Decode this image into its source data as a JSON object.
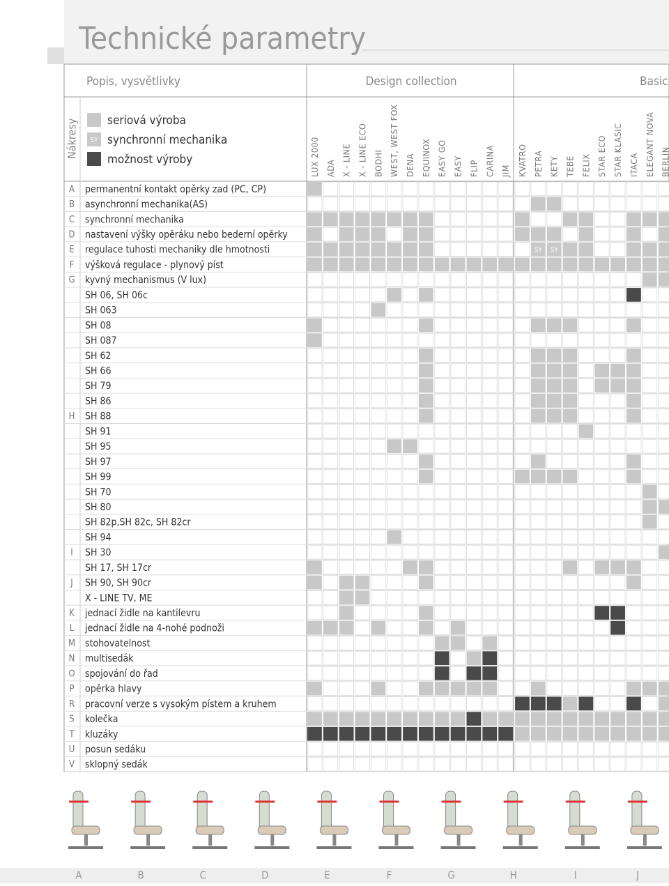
{
  "header": {
    "title": "Technické parametry",
    "sections": [
      "Popis, vysvětlivky",
      "Design collection",
      "Basic"
    ],
    "side_label": "Nákresy"
  },
  "legend": {
    "serial": "seriová výroba",
    "sync_mark": "SY",
    "sync": "synchronní mechanika",
    "option": "možnost výroby"
  },
  "columns": [
    "LUX 2000",
    "ADA",
    "X - LINE",
    "X - LINE ECO",
    "BODHI",
    "WEST, WEST FOX",
    "DENA",
    "EQUINOX",
    "EASY GO",
    "EASY",
    "FLIP",
    "CARINA",
    "JIM",
    "KVATRO",
    "PETRA",
    "KETY",
    "TEBE",
    "FELIX",
    "STAR ECO",
    "STAR KLASIC",
    "ITACA",
    "ELEGANT NOVA",
    "BERLIN"
  ],
  "rows": [
    {
      "group": "A",
      "label": "permanentní kontakt opěrky zad (PC, CP)",
      "cells": [
        1,
        0,
        0,
        0,
        0,
        0,
        0,
        0,
        0,
        0,
        0,
        0,
        0,
        0,
        0,
        0,
        0,
        0,
        0,
        0,
        0,
        0,
        0
      ]
    },
    {
      "group": "B",
      "label": "asynchronní mechanika(AS)",
      "cells": [
        0,
        0,
        0,
        0,
        0,
        0,
        0,
        0,
        0,
        0,
        0,
        0,
        0,
        0,
        1,
        1,
        0,
        0,
        0,
        0,
        0,
        0,
        0
      ]
    },
    {
      "group": "C",
      "label": "synchronní mechanika",
      "cells": [
        1,
        1,
        1,
        1,
        1,
        1,
        1,
        1,
        0,
        0,
        0,
        0,
        0,
        1,
        0,
        0,
        1,
        1,
        0,
        0,
        1,
        1,
        1
      ]
    },
    {
      "group": "D",
      "label": "nastavení výšky opěráku nebo bederní opěrky",
      "cells": [
        1,
        0,
        1,
        1,
        1,
        0,
        1,
        1,
        0,
        0,
        0,
        0,
        0,
        1,
        1,
        1,
        0,
        1,
        0,
        0,
        1,
        0,
        1
      ]
    },
    {
      "group": "E",
      "label": "regulace tuhosti mechaniky dle hmotnosti",
      "cells": [
        1,
        1,
        1,
        1,
        1,
        1,
        1,
        1,
        0,
        0,
        0,
        0,
        0,
        0,
        "SY",
        "SY",
        1,
        1,
        0,
        0,
        1,
        1,
        1
      ]
    },
    {
      "group": "F",
      "label": "výšková regulace - plynový píst",
      "cells": [
        1,
        1,
        1,
        1,
        1,
        1,
        1,
        1,
        1,
        1,
        1,
        1,
        1,
        1,
        1,
        1,
        1,
        1,
        1,
        1,
        1,
        1,
        1
      ]
    },
    {
      "group": "G",
      "label": "kyvný mechanismus (V lux)",
      "cells": [
        0,
        0,
        0,
        0,
        0,
        0,
        0,
        0,
        0,
        0,
        0,
        0,
        0,
        0,
        0,
        0,
        0,
        0,
        0,
        0,
        0,
        1,
        1
      ]
    },
    {
      "group": null,
      "label": "SH 06, SH 06c",
      "cells": [
        0,
        0,
        0,
        0,
        0,
        1,
        0,
        1,
        0,
        0,
        0,
        0,
        0,
        0,
        0,
        0,
        0,
        0,
        0,
        0,
        2,
        0,
        0
      ]
    },
    {
      "group": null,
      "label": "SH 063",
      "cells": [
        0,
        0,
        0,
        0,
        1,
        0,
        0,
        0,
        0,
        0,
        0,
        0,
        0,
        0,
        0,
        0,
        0,
        0,
        0,
        0,
        0,
        0,
        0
      ]
    },
    {
      "group": null,
      "label": "SH 08",
      "cells": [
        1,
        0,
        0,
        0,
        0,
        0,
        0,
        1,
        0,
        0,
        0,
        0,
        0,
        0,
        1,
        1,
        1,
        0,
        0,
        0,
        1,
        0,
        0
      ]
    },
    {
      "group": null,
      "label": "SH 087",
      "cells": [
        1,
        0,
        0,
        0,
        0,
        0,
        0,
        0,
        0,
        0,
        0,
        0,
        0,
        0,
        0,
        0,
        0,
        0,
        0,
        0,
        0,
        0,
        0
      ]
    },
    {
      "group": null,
      "label": "SH 62",
      "cells": [
        0,
        0,
        0,
        0,
        0,
        0,
        0,
        1,
        0,
        0,
        0,
        0,
        0,
        0,
        1,
        1,
        1,
        0,
        0,
        0,
        1,
        0,
        0
      ]
    },
    {
      "group": null,
      "label": "SH 66",
      "cells": [
        0,
        0,
        0,
        0,
        0,
        0,
        0,
        1,
        0,
        0,
        0,
        0,
        0,
        0,
        1,
        1,
        1,
        0,
        1,
        1,
        1,
        0,
        0
      ]
    },
    {
      "group": null,
      "label": "SH 79",
      "cells": [
        0,
        0,
        0,
        0,
        0,
        0,
        0,
        1,
        0,
        0,
        0,
        0,
        0,
        0,
        1,
        1,
        1,
        0,
        1,
        1,
        1,
        0,
        0
      ]
    },
    {
      "group": null,
      "label": "SH 86",
      "cells": [
        0,
        0,
        0,
        0,
        0,
        0,
        0,
        1,
        0,
        0,
        0,
        0,
        0,
        0,
        1,
        1,
        1,
        0,
        0,
        0,
        1,
        0,
        0
      ]
    },
    {
      "group": "H",
      "label": "SH 88",
      "cells": [
        0,
        0,
        0,
        0,
        0,
        0,
        0,
        1,
        0,
        0,
        0,
        0,
        0,
        0,
        1,
        1,
        1,
        0,
        0,
        0,
        1,
        0,
        0
      ]
    },
    {
      "group": null,
      "label": "SH 91",
      "cells": [
        0,
        0,
        0,
        0,
        0,
        0,
        0,
        0,
        0,
        0,
        0,
        0,
        0,
        0,
        0,
        0,
        0,
        1,
        0,
        0,
        0,
        0,
        0
      ]
    },
    {
      "group": null,
      "label": "SH 95",
      "cells": [
        0,
        0,
        0,
        0,
        0,
        1,
        1,
        0,
        0,
        0,
        0,
        0,
        0,
        0,
        0,
        0,
        0,
        0,
        0,
        0,
        0,
        0,
        0
      ]
    },
    {
      "group": null,
      "label": "SH 97",
      "cells": [
        0,
        0,
        0,
        0,
        0,
        0,
        0,
        1,
        0,
        0,
        0,
        0,
        0,
        0,
        1,
        0,
        0,
        0,
        0,
        0,
        1,
        0,
        0
      ]
    },
    {
      "group": null,
      "label": "SH 99",
      "cells": [
        0,
        0,
        0,
        0,
        0,
        0,
        0,
        1,
        0,
        0,
        0,
        0,
        0,
        1,
        1,
        1,
        1,
        0,
        0,
        0,
        1,
        0,
        0
      ]
    },
    {
      "group": null,
      "label": "SH 70",
      "cells": [
        0,
        0,
        0,
        0,
        0,
        0,
        0,
        0,
        0,
        0,
        0,
        0,
        0,
        0,
        0,
        0,
        0,
        0,
        0,
        0,
        0,
        1,
        0
      ]
    },
    {
      "group": null,
      "label": "SH 80",
      "cells": [
        0,
        0,
        0,
        0,
        0,
        0,
        0,
        0,
        0,
        0,
        0,
        0,
        0,
        0,
        0,
        0,
        0,
        0,
        0,
        0,
        0,
        1,
        1
      ]
    },
    {
      "group": null,
      "label": "SH 82p,SH 82c, SH 82cr",
      "cells": [
        0,
        0,
        0,
        0,
        0,
        0,
        0,
        0,
        0,
        0,
        0,
        0,
        0,
        0,
        0,
        0,
        0,
        0,
        0,
        0,
        0,
        1,
        0
      ]
    },
    {
      "group": null,
      "label": "SH 94",
      "cells": [
        0,
        0,
        0,
        0,
        0,
        1,
        0,
        0,
        0,
        0,
        0,
        0,
        0,
        0,
        0,
        0,
        0,
        0,
        0,
        0,
        0,
        0,
        0
      ]
    },
    {
      "group": "I",
      "label": "SH 30",
      "cells": [
        0,
        0,
        0,
        0,
        0,
        0,
        0,
        0,
        0,
        0,
        0,
        0,
        0,
        0,
        0,
        0,
        0,
        0,
        0,
        0,
        0,
        0,
        1
      ]
    },
    {
      "group": null,
      "label": "SH 17, SH 17cr",
      "cells": [
        1,
        0,
        0,
        0,
        0,
        0,
        1,
        1,
        0,
        0,
        0,
        0,
        0,
        0,
        0,
        0,
        1,
        0,
        1,
        1,
        1,
        0,
        0
      ]
    },
    {
      "group": "J",
      "label": "SH 90, SH 90cr",
      "cells": [
        1,
        0,
        1,
        1,
        0,
        0,
        0,
        1,
        0,
        0,
        0,
        0,
        0,
        0,
        0,
        0,
        0,
        0,
        0,
        0,
        1,
        0,
        0
      ]
    },
    {
      "group": null,
      "label": "X - LINE TV, ME",
      "cells": [
        0,
        0,
        1,
        1,
        0,
        0,
        0,
        0,
        0,
        0,
        0,
        0,
        0,
        0,
        0,
        0,
        0,
        0,
        0,
        0,
        0,
        0,
        0
      ]
    },
    {
      "group": "K",
      "label": "jednací židle na kantilevru",
      "cells": [
        0,
        0,
        1,
        0,
        0,
        0,
        0,
        1,
        0,
        0,
        0,
        0,
        0,
        0,
        0,
        0,
        0,
        0,
        2,
        2,
        0,
        0,
        0
      ]
    },
    {
      "group": "L",
      "label": "jednací židle na 4-nohé podnoži",
      "cells": [
        1,
        1,
        1,
        0,
        1,
        0,
        0,
        1,
        0,
        1,
        0,
        0,
        0,
        0,
        0,
        0,
        0,
        0,
        0,
        2,
        0,
        0,
        0
      ]
    },
    {
      "group": "M",
      "label": "stohovatelnost",
      "cells": [
        0,
        0,
        0,
        0,
        0,
        0,
        0,
        0,
        1,
        1,
        0,
        1,
        0,
        0,
        0,
        0,
        0,
        0,
        0,
        0,
        0,
        0,
        0
      ]
    },
    {
      "group": "N",
      "label": "multisedák",
      "cells": [
        0,
        0,
        0,
        0,
        0,
        0,
        0,
        0,
        2,
        0,
        1,
        2,
        0,
        0,
        0,
        0,
        0,
        0,
        0,
        0,
        0,
        0,
        0
      ]
    },
    {
      "group": "O",
      "label": "spojování do řad",
      "cells": [
        0,
        0,
        0,
        0,
        0,
        0,
        0,
        0,
        2,
        0,
        2,
        2,
        0,
        0,
        0,
        0,
        0,
        0,
        0,
        0,
        0,
        0,
        0
      ]
    },
    {
      "group": "P",
      "label": "opěrka hlavy",
      "cells": [
        1,
        0,
        0,
        0,
        1,
        0,
        0,
        1,
        1,
        1,
        1,
        1,
        0,
        0,
        1,
        0,
        0,
        0,
        0,
        0,
        1,
        1,
        1
      ]
    },
    {
      "group": "R",
      "label": "pracovní verze s vysokým pístem a kruhem",
      "cells": [
        0,
        0,
        0,
        0,
        0,
        0,
        0,
        0,
        0,
        0,
        0,
        0,
        0,
        2,
        2,
        2,
        1,
        2,
        0,
        0,
        2,
        0,
        1
      ]
    },
    {
      "group": "S",
      "label": "kolečka",
      "cells": [
        1,
        1,
        1,
        1,
        1,
        1,
        1,
        1,
        1,
        1,
        2,
        1,
        1,
        1,
        1,
        1,
        1,
        1,
        1,
        1,
        1,
        1,
        1
      ]
    },
    {
      "group": "T",
      "label": "kluzáky",
      "cells": [
        2,
        2,
        2,
        2,
        2,
        2,
        2,
        2,
        2,
        2,
        2,
        2,
        2,
        1,
        1,
        1,
        1,
        1,
        1,
        1,
        1,
        1,
        1
      ]
    },
    {
      "group": "U",
      "label": "posun sedáku",
      "cells": [
        0,
        0,
        0,
        0,
        0,
        0,
        0,
        0,
        0,
        0,
        0,
        0,
        0,
        0,
        0,
        0,
        0,
        0,
        0,
        0,
        0,
        0,
        0
      ]
    },
    {
      "group": "V",
      "label": "sklopný sedák",
      "cells": [
        0,
        0,
        0,
        0,
        0,
        0,
        0,
        0,
        0,
        0,
        0,
        0,
        0,
        0,
        0,
        0,
        0,
        0,
        0,
        0,
        0,
        0,
        0
      ]
    }
  ],
  "drawings": [
    "A",
    "B",
    "C",
    "D",
    "E",
    "F",
    "G",
    "H",
    "I",
    "J"
  ]
}
